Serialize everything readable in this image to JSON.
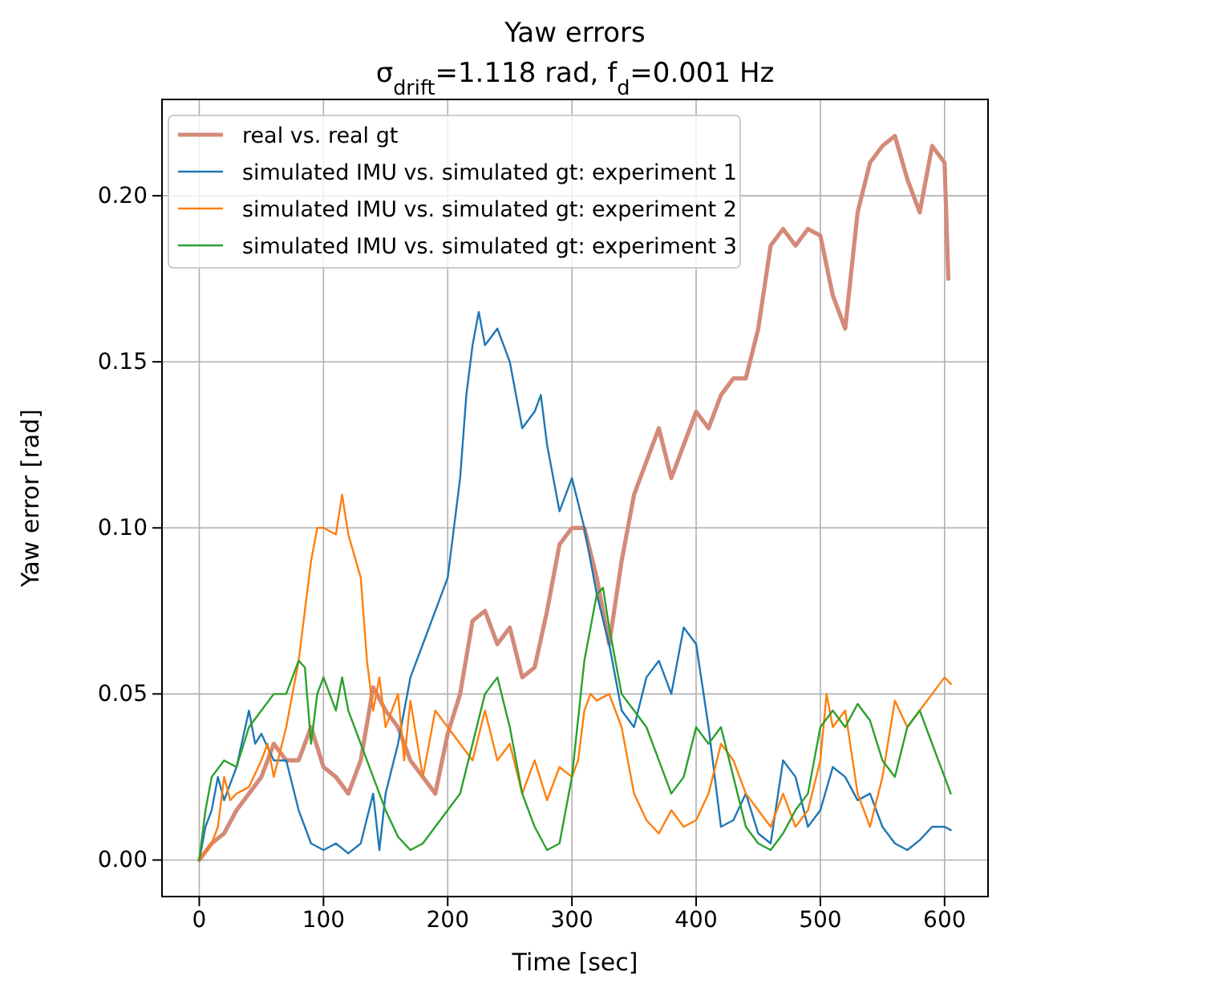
{
  "chart_data": {
    "type": "line",
    "title": "Yaw errors",
    "subtitle": "σ$_{drift}$=1.118 rad, f$_{d}$=0.001 Hz",
    "xlabel": "Time [sec]",
    "ylabel": "Yaw error [rad]",
    "xlim": [
      -30,
      635
    ],
    "ylim": [
      -0.011,
      0.229
    ],
    "xticks": [
      0,
      100,
      200,
      300,
      400,
      500,
      600
    ],
    "yticks": [
      {
        "value": 0,
        "label": "0.00"
      },
      {
        "value": 0.05,
        "label": "0.05"
      },
      {
        "value": 0.1,
        "label": "0.10"
      },
      {
        "value": 0.15,
        "label": "0.15"
      },
      {
        "value": 0.2,
        "label": "0.20"
      }
    ],
    "grid": true,
    "legend": "top left",
    "line_style": "solid",
    "marker": "none",
    "series": [
      {
        "name": "real vs. real gt",
        "color": "#d48a78",
        "x": [
          0,
          10,
          20,
          30,
          40,
          50,
          60,
          70,
          80,
          90,
          100,
          110,
          120,
          130,
          140,
          150,
          160,
          170,
          180,
          190,
          200,
          210,
          220,
          230,
          240,
          250,
          260,
          270,
          280,
          290,
          300,
          310,
          320,
          330,
          340,
          350,
          360,
          370,
          380,
          390,
          400,
          410,
          420,
          430,
          440,
          450,
          460,
          470,
          480,
          490,
          500,
          510,
          520,
          530,
          540,
          550,
          560,
          570,
          580,
          590,
          600,
          603
        ],
        "values": [
          0,
          0.005,
          0.008,
          0.015,
          0.02,
          0.025,
          0.035,
          0.03,
          0.03,
          0.04,
          0.028,
          0.025,
          0.02,
          0.03,
          0.052,
          0.045,
          0.04,
          0.03,
          0.025,
          0.02,
          0.038,
          0.05,
          0.072,
          0.075,
          0.065,
          0.07,
          0.055,
          0.058,
          0.075,
          0.095,
          0.1,
          0.1,
          0.085,
          0.065,
          0.09,
          0.11,
          0.12,
          0.13,
          0.115,
          0.125,
          0.135,
          0.13,
          0.14,
          0.145,
          0.145,
          0.16,
          0.185,
          0.19,
          0.185,
          0.19,
          0.188,
          0.17,
          0.16,
          0.195,
          0.21,
          0.215,
          0.218,
          0.205,
          0.195,
          0.215,
          0.21,
          0.175
        ]
      },
      {
        "name": "simulated IMU vs. simulated gt: experiment 1",
        "color": "#1f77b4",
        "x": [
          0,
          5,
          10,
          15,
          20,
          30,
          40,
          45,
          50,
          60,
          70,
          80,
          90,
          100,
          110,
          120,
          130,
          140,
          145,
          150,
          160,
          170,
          180,
          190,
          200,
          205,
          210,
          215,
          220,
          225,
          230,
          240,
          250,
          260,
          270,
          275,
          280,
          290,
          300,
          310,
          320,
          330,
          340,
          350,
          360,
          370,
          380,
          390,
          400,
          410,
          420,
          430,
          440,
          450,
          460,
          470,
          480,
          490,
          500,
          510,
          520,
          530,
          540,
          550,
          560,
          570,
          580,
          590,
          600,
          605
        ],
        "values": [
          0,
          0.01,
          0.015,
          0.025,
          0.018,
          0.028,
          0.045,
          0.035,
          0.038,
          0.03,
          0.03,
          0.015,
          0.005,
          0.003,
          0.005,
          0.002,
          0.005,
          0.02,
          0.003,
          0.02,
          0.035,
          0.055,
          0.065,
          0.075,
          0.085,
          0.1,
          0.115,
          0.14,
          0.155,
          0.165,
          0.155,
          0.16,
          0.15,
          0.13,
          0.135,
          0.14,
          0.125,
          0.105,
          0.115,
          0.1,
          0.08,
          0.065,
          0.045,
          0.04,
          0.055,
          0.06,
          0.05,
          0.07,
          0.065,
          0.04,
          0.01,
          0.012,
          0.02,
          0.008,
          0.005,
          0.03,
          0.025,
          0.01,
          0.015,
          0.028,
          0.025,
          0.018,
          0.02,
          0.01,
          0.005,
          0.003,
          0.006,
          0.01,
          0.01,
          0.009
        ]
      },
      {
        "name": "simulated IMU vs. simulated gt: experiment 2",
        "color": "#ff7f0e",
        "x": [
          0,
          10,
          15,
          20,
          25,
          30,
          40,
          50,
          55,
          60,
          70,
          80,
          90,
          95,
          100,
          110,
          115,
          120,
          130,
          135,
          140,
          145,
          150,
          160,
          165,
          170,
          180,
          190,
          200,
          210,
          220,
          230,
          240,
          250,
          260,
          270,
          280,
          290,
          300,
          305,
          310,
          315,
          320,
          330,
          340,
          350,
          360,
          370,
          380,
          390,
          400,
          410,
          420,
          430,
          440,
          450,
          460,
          470,
          480,
          490,
          500,
          505,
          510,
          520,
          530,
          540,
          550,
          560,
          570,
          580,
          590,
          600,
          605
        ],
        "values": [
          0,
          0.005,
          0.01,
          0.025,
          0.018,
          0.02,
          0.022,
          0.03,
          0.035,
          0.025,
          0.04,
          0.06,
          0.09,
          0.1,
          0.1,
          0.098,
          0.11,
          0.098,
          0.085,
          0.06,
          0.045,
          0.055,
          0.04,
          0.05,
          0.03,
          0.048,
          0.025,
          0.045,
          0.04,
          0.035,
          0.03,
          0.045,
          0.03,
          0.035,
          0.02,
          0.03,
          0.018,
          0.028,
          0.025,
          0.03,
          0.045,
          0.05,
          0.048,
          0.05,
          0.04,
          0.02,
          0.012,
          0.008,
          0.015,
          0.01,
          0.012,
          0.02,
          0.035,
          0.03,
          0.02,
          0.015,
          0.01,
          0.02,
          0.01,
          0.015,
          0.03,
          0.05,
          0.04,
          0.045,
          0.02,
          0.01,
          0.025,
          0.048,
          0.04,
          0.045,
          0.05,
          0.055,
          0.053
        ]
      },
      {
        "name": "simulated IMU vs. simulated gt: experiment 3",
        "color": "#2ca02c",
        "x": [
          0,
          5,
          10,
          20,
          30,
          40,
          50,
          60,
          70,
          80,
          85,
          90,
          95,
          100,
          110,
          115,
          120,
          130,
          140,
          150,
          160,
          170,
          180,
          190,
          200,
          210,
          220,
          230,
          240,
          250,
          260,
          270,
          280,
          290,
          300,
          310,
          320,
          325,
          330,
          340,
          350,
          360,
          370,
          380,
          390,
          400,
          410,
          420,
          430,
          440,
          450,
          460,
          470,
          480,
          490,
          500,
          510,
          520,
          530,
          540,
          550,
          560,
          570,
          580,
          590,
          600,
          605
        ],
        "values": [
          0,
          0.015,
          0.025,
          0.03,
          0.028,
          0.04,
          0.045,
          0.05,
          0.05,
          0.06,
          0.058,
          0.035,
          0.05,
          0.055,
          0.045,
          0.055,
          0.045,
          0.035,
          0.025,
          0.015,
          0.007,
          0.003,
          0.005,
          0.01,
          0.015,
          0.02,
          0.035,
          0.05,
          0.055,
          0.04,
          0.02,
          0.01,
          0.003,
          0.005,
          0.025,
          0.06,
          0.08,
          0.082,
          0.07,
          0.05,
          0.045,
          0.04,
          0.03,
          0.02,
          0.025,
          0.04,
          0.035,
          0.04,
          0.025,
          0.01,
          0.005,
          0.003,
          0.008,
          0.015,
          0.02,
          0.04,
          0.045,
          0.04,
          0.047,
          0.042,
          0.03,
          0.025,
          0.04,
          0.045,
          0.035,
          0.025,
          0.02
        ]
      }
    ]
  }
}
